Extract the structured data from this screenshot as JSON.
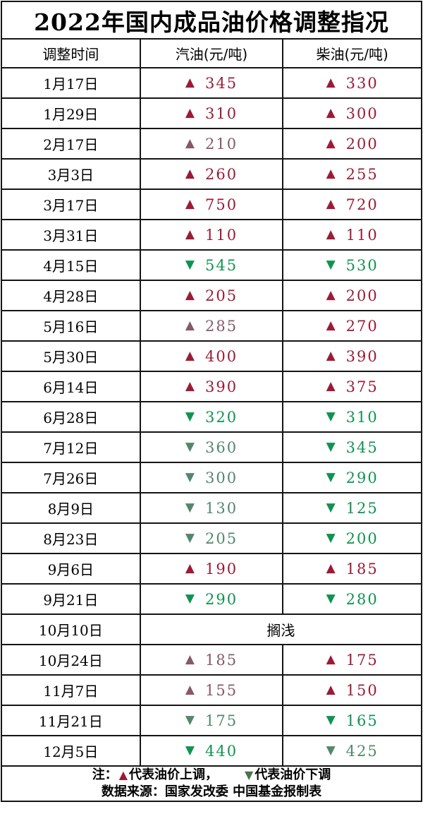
{
  "title": "2022年国内成品油价格调整指况",
  "symbols": {
    "up": "▲",
    "down": "▼"
  },
  "colors": {
    "red_vivid": "#9b1b36",
    "red_muted": "#875869",
    "green_vivid": "#0f9351",
    "green_muted": "#52876c",
    "note_up": "#9b1b36",
    "note_down": "#4a7350",
    "border": "#151515"
  },
  "chart_data": {
    "type": "table",
    "title": "2022年国内成品油价格调整指况",
    "columns": [
      "调整时间",
      "汽油(元/吨)",
      "柴油(元/吨)"
    ],
    "rows": [
      {
        "date": "1月17日",
        "gasoline": {
          "direction": "up",
          "value": "345",
          "tone": "vivid"
        },
        "diesel": {
          "direction": "up",
          "value": "330",
          "tone": "vivid"
        }
      },
      {
        "date": "1月29日",
        "gasoline": {
          "direction": "up",
          "value": "310",
          "tone": "vivid"
        },
        "diesel": {
          "direction": "up",
          "value": "300",
          "tone": "vivid"
        }
      },
      {
        "date": "2月17日",
        "gasoline": {
          "direction": "up",
          "value": "210",
          "tone": "muted"
        },
        "diesel": {
          "direction": "up",
          "value": "200",
          "tone": "vivid"
        }
      },
      {
        "date": "3月3日",
        "gasoline": {
          "direction": "up",
          "value": "260",
          "tone": "vivid"
        },
        "diesel": {
          "direction": "up",
          "value": "255",
          "tone": "vivid"
        }
      },
      {
        "date": "3月17日",
        "gasoline": {
          "direction": "up",
          "value": "750",
          "tone": "vivid"
        },
        "diesel": {
          "direction": "up",
          "value": "720",
          "tone": "vivid"
        }
      },
      {
        "date": "3月31日",
        "gasoline": {
          "direction": "up",
          "value": "110",
          "tone": "vivid"
        },
        "diesel": {
          "direction": "up",
          "value": "110",
          "tone": "vivid"
        }
      },
      {
        "date": "4月15日",
        "gasoline": {
          "direction": "down",
          "value": "545",
          "tone": "vivid"
        },
        "diesel": {
          "direction": "down",
          "value": "530",
          "tone": "vivid"
        }
      },
      {
        "date": "4月28日",
        "gasoline": {
          "direction": "up",
          "value": "205",
          "tone": "vivid"
        },
        "diesel": {
          "direction": "up",
          "value": "200",
          "tone": "vivid"
        }
      },
      {
        "date": "5月16日",
        "gasoline": {
          "direction": "up",
          "value": "285",
          "tone": "muted"
        },
        "diesel": {
          "direction": "up",
          "value": "270",
          "tone": "vivid"
        }
      },
      {
        "date": "5月30日",
        "gasoline": {
          "direction": "up",
          "value": "400",
          "tone": "vivid"
        },
        "diesel": {
          "direction": "up",
          "value": "390",
          "tone": "vivid"
        }
      },
      {
        "date": "6月14日",
        "gasoline": {
          "direction": "up",
          "value": "390",
          "tone": "vivid"
        },
        "diesel": {
          "direction": "up",
          "value": "375",
          "tone": "vivid"
        }
      },
      {
        "date": "6月28日",
        "gasoline": {
          "direction": "down",
          "value": "320",
          "tone": "vivid"
        },
        "diesel": {
          "direction": "down",
          "value": "310",
          "tone": "vivid"
        }
      },
      {
        "date": "7月12日",
        "gasoline": {
          "direction": "down",
          "value": "360",
          "tone": "muted"
        },
        "diesel": {
          "direction": "down",
          "value": "345",
          "tone": "vivid"
        }
      },
      {
        "date": "7月26日",
        "gasoline": {
          "direction": "down",
          "value": "300",
          "tone": "muted"
        },
        "diesel": {
          "direction": "down",
          "value": "290",
          "tone": "vivid"
        }
      },
      {
        "date": "8月9日",
        "gasoline": {
          "direction": "down",
          "value": "130",
          "tone": "muted"
        },
        "diesel": {
          "direction": "down",
          "value": "125",
          "tone": "vivid"
        }
      },
      {
        "date": "8月23日",
        "gasoline": {
          "direction": "down",
          "value": "205",
          "tone": "muted"
        },
        "diesel": {
          "direction": "down",
          "value": "200",
          "tone": "vivid"
        }
      },
      {
        "date": "9月6日",
        "gasoline": {
          "direction": "up",
          "value": "190",
          "tone": "vivid"
        },
        "diesel": {
          "direction": "up",
          "value": "185",
          "tone": "vivid"
        }
      },
      {
        "date": "9月21日",
        "gasoline": {
          "direction": "down",
          "value": "290",
          "tone": "vivid"
        },
        "diesel": {
          "direction": "down",
          "value": "280",
          "tone": "vivid"
        }
      },
      {
        "date": "10月10日",
        "merged": "搁浅"
      },
      {
        "date": "10月24日",
        "gasoline": {
          "direction": "up",
          "value": "185",
          "tone": "muted"
        },
        "diesel": {
          "direction": "up",
          "value": "175",
          "tone": "vivid"
        }
      },
      {
        "date": "11月7日",
        "gasoline": {
          "direction": "up",
          "value": "155",
          "tone": "muted"
        },
        "diesel": {
          "direction": "up",
          "value": "150",
          "tone": "vivid"
        }
      },
      {
        "date": "11月21日",
        "gasoline": {
          "direction": "down",
          "value": "175",
          "tone": "muted"
        },
        "diesel": {
          "direction": "down",
          "value": "165",
          "tone": "vivid"
        }
      },
      {
        "date": "12月5日",
        "gasoline": {
          "direction": "down",
          "value": "440",
          "tone": "vivid"
        },
        "diesel": {
          "direction": "down",
          "value": "425",
          "tone": "muted"
        }
      }
    ],
    "note": {
      "label": "注：",
      "up_symbol": "▲",
      "up_text": "代表油价上调，",
      "down_symbol": "▼",
      "down_text": "代表油价下调"
    },
    "source": "数据来源：国家发改委  中国基金报制表"
  }
}
